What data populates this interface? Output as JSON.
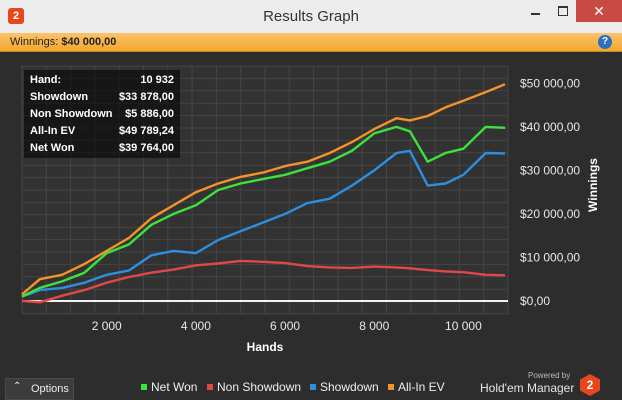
{
  "window": {
    "title": "Results Graph",
    "logo_glyph": "2",
    "close_glyph": "✕"
  },
  "winnings_bar": {
    "label": "Winnings:",
    "value": "$40 000,00",
    "help_glyph": "?"
  },
  "stats": [
    {
      "label": "Hand:",
      "value": "10 932"
    },
    {
      "label": "Showdown",
      "value": "$33 878,00"
    },
    {
      "label": "Non Showdown",
      "value": "$5 886,00"
    },
    {
      "label": "All-In EV",
      "value": "$49 789,24"
    },
    {
      "label": "Net Won",
      "value": "$39 764,00"
    }
  ],
  "chart_data": {
    "type": "line",
    "xlabel": "Hands",
    "ylabel": "Winnings",
    "xlim": [
      100,
      11000
    ],
    "ylim": [
      -3000,
      54000
    ],
    "x_ticks": [
      2000,
      4000,
      6000,
      8000,
      10000
    ],
    "x_tick_labels": [
      "2 000",
      "4 000",
      "6 000",
      "8 000",
      "10 000"
    ],
    "y_ticks": [
      0,
      10000,
      20000,
      30000,
      40000,
      50000
    ],
    "y_tick_labels": [
      "$0,00",
      "$10 000,00",
      "$20 000,00",
      "$30 000,00",
      "$40 000,00",
      "$50 000,00"
    ],
    "grid": true,
    "legend_position": "bottom",
    "x": [
      100,
      500,
      1000,
      1500,
      2000,
      2500,
      3000,
      3500,
      4000,
      4500,
      5000,
      5500,
      6000,
      6500,
      7000,
      7500,
      8000,
      8500,
      8800,
      9200,
      9600,
      10000,
      10500,
      10932
    ],
    "series": [
      {
        "name": "Net Won",
        "color": "#3de33d",
        "values": [
          1000,
          3000,
          4500,
          6500,
          11000,
          13000,
          17500,
          20000,
          22000,
          25500,
          27000,
          28000,
          29000,
          30500,
          32000,
          34500,
          38500,
          40000,
          39000,
          32000,
          34000,
          35000,
          40000,
          39800
        ]
      },
      {
        "name": "Non Showdown",
        "color": "#e04848",
        "values": [
          0,
          -300,
          1200,
          2500,
          4200,
          5500,
          6500,
          7200,
          8200,
          8600,
          9200,
          9000,
          8700,
          8000,
          7700,
          7600,
          7900,
          7700,
          7500,
          7100,
          6800,
          6600,
          6000,
          5900
        ]
      },
      {
        "name": "Showdown",
        "color": "#2d8fe0",
        "values": [
          1000,
          2500,
          3000,
          4200,
          6000,
          7000,
          10500,
          11500,
          11000,
          14000,
          16000,
          18000,
          20000,
          22500,
          23500,
          26500,
          30000,
          34000,
          34500,
          26500,
          27000,
          29000,
          34000,
          33900
        ]
      },
      {
        "name": "All-In EV",
        "color": "#f4922b",
        "values": [
          1500,
          5000,
          6000,
          8500,
          11500,
          14500,
          19000,
          22000,
          25000,
          27000,
          28500,
          29500,
          31000,
          32000,
          34000,
          36500,
          39500,
          42000,
          41500,
          42500,
          44500,
          46000,
          48000,
          49800
        ]
      }
    ]
  },
  "bottom": {
    "options_label": "Options",
    "options_glyph": "⌃",
    "powered_by": "Powered by",
    "brand": "Hold'em Manager",
    "brand_glyph": "2"
  }
}
